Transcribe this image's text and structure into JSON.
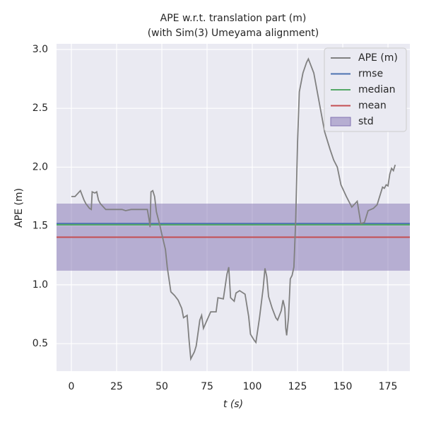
{
  "chart_data": {
    "type": "line",
    "title": "APE w.r.t. translation part (m)",
    "subtitle": "(with Sim(3) Umeyama alignment)",
    "xlabel": "t (s)",
    "ylabel": "APE (m)",
    "xlim": [
      -8.2,
      187.1
    ],
    "ylim": [
      0.266,
      3.048
    ],
    "xticks": [
      0,
      25,
      50,
      75,
      100,
      125,
      150,
      175
    ],
    "yticks": [
      0.5,
      {
        "value": 1.0,
        "label": "1.0"
      },
      1.5,
      {
        "value": 2.0,
        "label": "2.0"
      },
      2.5,
      {
        "value": 3.0,
        "label": "3.0"
      }
    ],
    "grid": true,
    "legend": "upper right",
    "x": [
      0,
      2,
      5,
      7,
      8,
      10,
      11,
      11.5,
      13,
      14,
      15,
      16,
      19,
      25,
      28,
      30,
      33,
      42,
      43,
      43.5,
      44,
      45,
      46,
      47,
      49,
      50,
      52,
      53,
      55,
      57,
      59,
      61,
      62,
      64,
      65,
      66,
      68,
      69,
      71,
      72,
      73,
      75,
      77,
      80,
      81,
      84,
      86,
      87,
      88,
      90,
      91,
      93,
      96,
      98,
      99,
      101,
      102,
      104,
      106,
      107,
      108,
      109,
      111,
      113,
      114,
      116,
      117,
      118,
      118.5,
      119,
      120,
      121,
      122,
      123,
      124,
      125,
      126,
      128,
      130,
      131,
      134,
      137,
      140,
      143,
      145,
      147,
      149,
      152,
      155,
      158,
      160,
      162,
      164,
      167,
      169,
      172,
      173,
      174,
      175,
      176,
      177,
      178,
      179
    ],
    "series": [
      {
        "name": "APE (m)",
        "color": "#808080",
        "values": [
          1.75,
          1.75,
          1.8,
          1.72,
          1.69,
          1.65,
          1.64,
          1.79,
          1.78,
          1.79,
          1.72,
          1.69,
          1.64,
          1.64,
          1.64,
          1.63,
          1.64,
          1.64,
          1.55,
          1.49,
          1.79,
          1.8,
          1.75,
          1.62,
          1.5,
          1.43,
          1.3,
          1.15,
          0.94,
          0.91,
          0.87,
          0.8,
          0.72,
          0.74,
          0.54,
          0.37,
          0.43,
          0.48,
          0.7,
          0.74,
          0.63,
          0.7,
          0.77,
          0.77,
          0.89,
          0.88,
          1.09,
          1.15,
          0.89,
          0.86,
          0.93,
          0.95,
          0.92,
          0.73,
          0.58,
          0.53,
          0.51,
          0.72,
          0.97,
          1.14,
          1.07,
          0.9,
          0.8,
          0.72,
          0.7,
          0.78,
          0.87,
          0.8,
          0.63,
          0.57,
          0.72,
          1.05,
          1.08,
          1.15,
          1.55,
          2.2,
          2.64,
          2.8,
          2.89,
          2.92,
          2.8,
          2.55,
          2.3,
          2.15,
          2.06,
          2.0,
          1.85,
          1.75,
          1.66,
          1.71,
          1.52,
          1.53,
          1.63,
          1.65,
          1.68,
          1.83,
          1.82,
          1.85,
          1.84,
          1.94,
          1.99,
          1.97,
          2.02
        ]
      },
      {
        "name": "rmse",
        "color": "#4c72b0",
        "value": 1.52
      },
      {
        "name": "median",
        "color": "#55a868",
        "value": 1.51
      },
      {
        "name": "mean",
        "color": "#c44e52",
        "value": 1.405,
        "std": 0.285
      },
      {
        "name": "std",
        "color": "#8172b2"
      }
    ]
  }
}
